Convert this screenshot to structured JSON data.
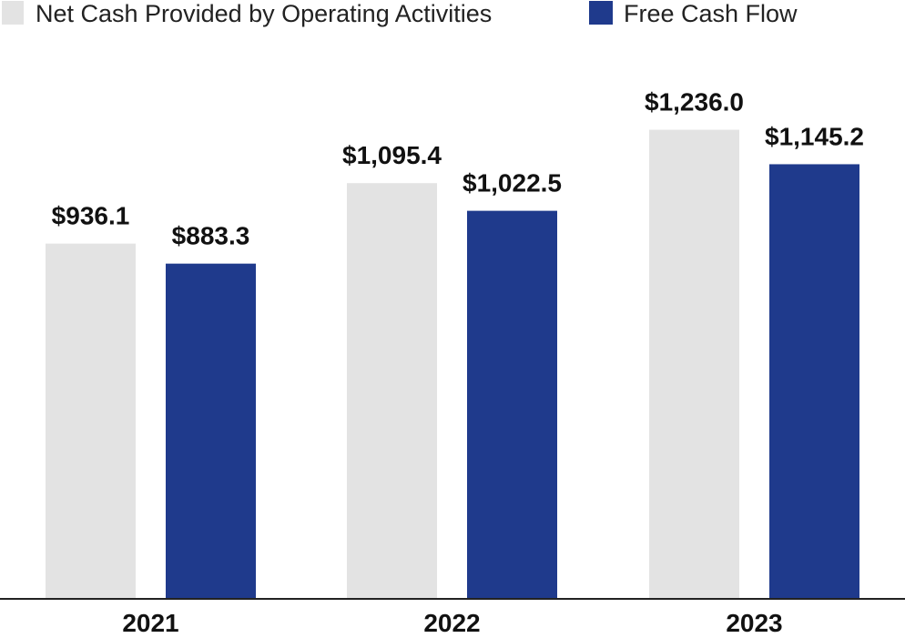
{
  "chart_data": {
    "type": "bar",
    "title": "",
    "xlabel": "",
    "ylabel": "",
    "categories": [
      "2021",
      "2022",
      "2023"
    ],
    "ylim": [
      0,
      1300
    ],
    "grid": false,
    "legend_position": "top-left",
    "series": [
      {
        "name": "Net Cash Provided by Operating Activities",
        "color": "#e3e3e3",
        "values": [
          936.1,
          1095.4,
          1236.0
        ],
        "labels": [
          "$936.1",
          "$1,095.4",
          "$1,236.0"
        ]
      },
      {
        "name": "Free Cash Flow",
        "color": "#1f3a8c",
        "values": [
          883.3,
          1022.5,
          1145.2
        ],
        "labels": [
          "$883.3",
          "$1,022.5",
          "$1,145.2"
        ]
      }
    ]
  }
}
